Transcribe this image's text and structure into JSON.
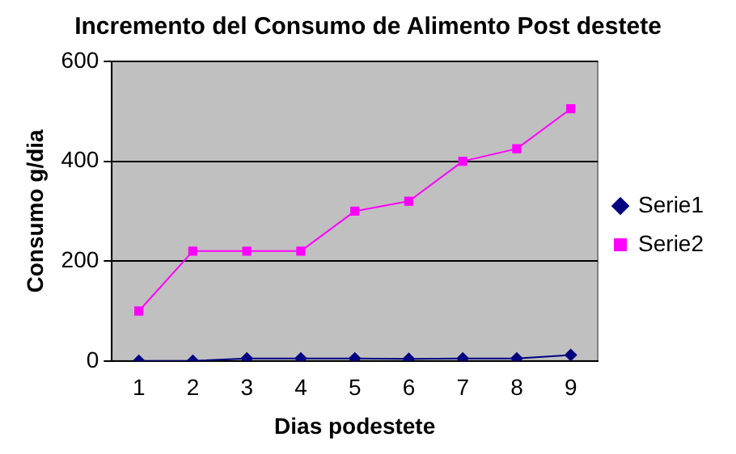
{
  "chart_data": {
    "type": "line",
    "title": "Incremento del Consumo de Alimento Post destete",
    "xlabel": "Dias podestete",
    "ylabel": "Consumo g/dia",
    "categories": [
      "1",
      "2",
      "3",
      "4",
      "5",
      "6",
      "7",
      "8",
      "9"
    ],
    "series": [
      {
        "name": "Serie1",
        "color": "#000080",
        "marker": "diamond",
        "values": [
          0,
          0,
          5,
          5,
          5,
          4,
          5,
          5,
          12
        ]
      },
      {
        "name": "Serie2",
        "color": "#ff00ff",
        "marker": "square",
        "values": [
          100,
          220,
          220,
          220,
          300,
          320,
          400,
          425,
          505
        ]
      }
    ],
    "ylim": [
      0,
      600
    ],
    "yticks": [
      0,
      200,
      400,
      600
    ],
    "grid": "y",
    "legend": "right"
  }
}
